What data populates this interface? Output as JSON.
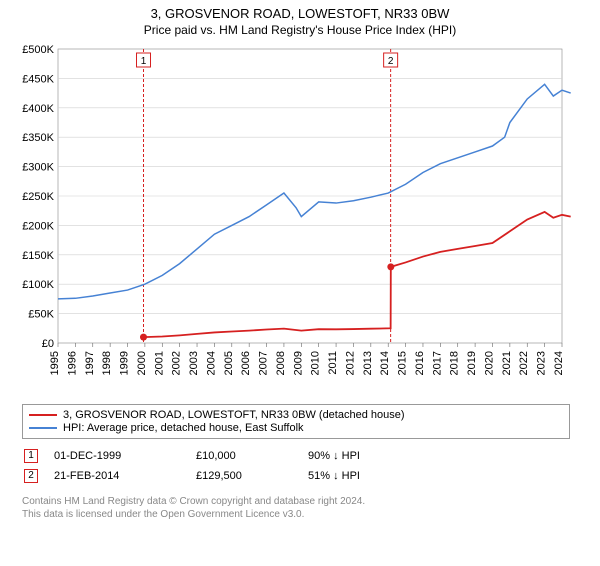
{
  "title": "3, GROSVENOR ROAD, LOWESTOFT, NR33 0BW",
  "subtitle": "Price paid vs. HM Land Registry's House Price Index (HPI)",
  "chart": {
    "type": "line",
    "background_color": "#ffffff",
    "grid_color": "#d0d0d0",
    "ylim": [
      0,
      500000
    ],
    "ytick_step": 50000,
    "yticks": [
      "£0",
      "£50K",
      "£100K",
      "£150K",
      "£200K",
      "£250K",
      "£300K",
      "£350K",
      "£400K",
      "£450K",
      "£500K"
    ],
    "xlim": [
      1995,
      2024
    ],
    "xticks": [
      1995,
      1996,
      1997,
      1998,
      1999,
      2000,
      2001,
      2002,
      2003,
      2004,
      2005,
      2006,
      2007,
      2008,
      2009,
      2010,
      2011,
      2012,
      2013,
      2014,
      2015,
      2016,
      2017,
      2018,
      2019,
      2020,
      2021,
      2022,
      2023,
      2024
    ],
    "label_fontsize": 11,
    "series": [
      {
        "name": "hpi",
        "label": "HPI: Average price, detached house, East Suffolk",
        "color": "#4682d4",
        "line_width": 1.5,
        "points": [
          [
            1995,
            75000
          ],
          [
            1996,
            76000
          ],
          [
            1997,
            80000
          ],
          [
            1998,
            85000
          ],
          [
            1999,
            90000
          ],
          [
            2000,
            100000
          ],
          [
            2001,
            115000
          ],
          [
            2002,
            135000
          ],
          [
            2003,
            160000
          ],
          [
            2004,
            185000
          ],
          [
            2005,
            200000
          ],
          [
            2006,
            215000
          ],
          [
            2007,
            235000
          ],
          [
            2008,
            255000
          ],
          [
            2008.7,
            230000
          ],
          [
            2009,
            215000
          ],
          [
            2010,
            240000
          ],
          [
            2011,
            238000
          ],
          [
            2012,
            242000
          ],
          [
            2013,
            248000
          ],
          [
            2014,
            255000
          ],
          [
            2015,
            270000
          ],
          [
            2016,
            290000
          ],
          [
            2017,
            305000
          ],
          [
            2018,
            315000
          ],
          [
            2019,
            325000
          ],
          [
            2020,
            335000
          ],
          [
            2020.7,
            350000
          ],
          [
            2021,
            375000
          ],
          [
            2022,
            415000
          ],
          [
            2023,
            440000
          ],
          [
            2023.5,
            420000
          ],
          [
            2024,
            430000
          ],
          [
            2024.5,
            425000
          ]
        ]
      },
      {
        "name": "property",
        "label": "3, GROSVENOR ROAD, LOWESTOFT, NR33 0BW (detached house)",
        "color": "#d62020",
        "line_width": 1.8,
        "points": [
          [
            1999.92,
            10000
          ],
          [
            2001,
            11000
          ],
          [
            2002,
            13000
          ],
          [
            2003,
            15500
          ],
          [
            2004,
            18000
          ],
          [
            2005,
            19500
          ],
          [
            2006,
            21000
          ],
          [
            2007,
            23000
          ],
          [
            2008,
            24500
          ],
          [
            2009,
            21000
          ],
          [
            2010,
            23500
          ],
          [
            2011,
            23300
          ],
          [
            2012,
            23700
          ],
          [
            2013,
            24300
          ],
          [
            2014.14,
            25000
          ],
          [
            2014.15,
            129500
          ],
          [
            2015,
            137000
          ],
          [
            2016,
            147000
          ],
          [
            2017,
            155000
          ],
          [
            2018,
            160000
          ],
          [
            2019,
            165000
          ],
          [
            2020,
            170000
          ],
          [
            2021,
            190000
          ],
          [
            2022,
            210000
          ],
          [
            2023,
            223000
          ],
          [
            2023.5,
            213000
          ],
          [
            2024,
            218000
          ],
          [
            2024.5,
            215000
          ]
        ]
      }
    ],
    "markers": [
      {
        "n": "1",
        "x": 1999.92,
        "color": "#d62020"
      },
      {
        "n": "2",
        "x": 2014.14,
        "color": "#d62020"
      }
    ]
  },
  "legend": {
    "items": [
      {
        "color": "#d62020",
        "label": "3, GROSVENOR ROAD, LOWESTOFT, NR33 0BW (detached house)"
      },
      {
        "color": "#4682d4",
        "label": "HPI: Average price, detached house, East Suffolk"
      }
    ]
  },
  "transactions": [
    {
      "n": "1",
      "color": "#d62020",
      "date": "01-DEC-1999",
      "price": "£10,000",
      "delta": "90% ↓ HPI"
    },
    {
      "n": "2",
      "color": "#d62020",
      "date": "21-FEB-2014",
      "price": "£129,500",
      "delta": "51% ↓ HPI"
    }
  ],
  "attribution": {
    "line1": "Contains HM Land Registry data © Crown copyright and database right 2024.",
    "line2": "This data is licensed under the Open Government Licence v3.0."
  }
}
